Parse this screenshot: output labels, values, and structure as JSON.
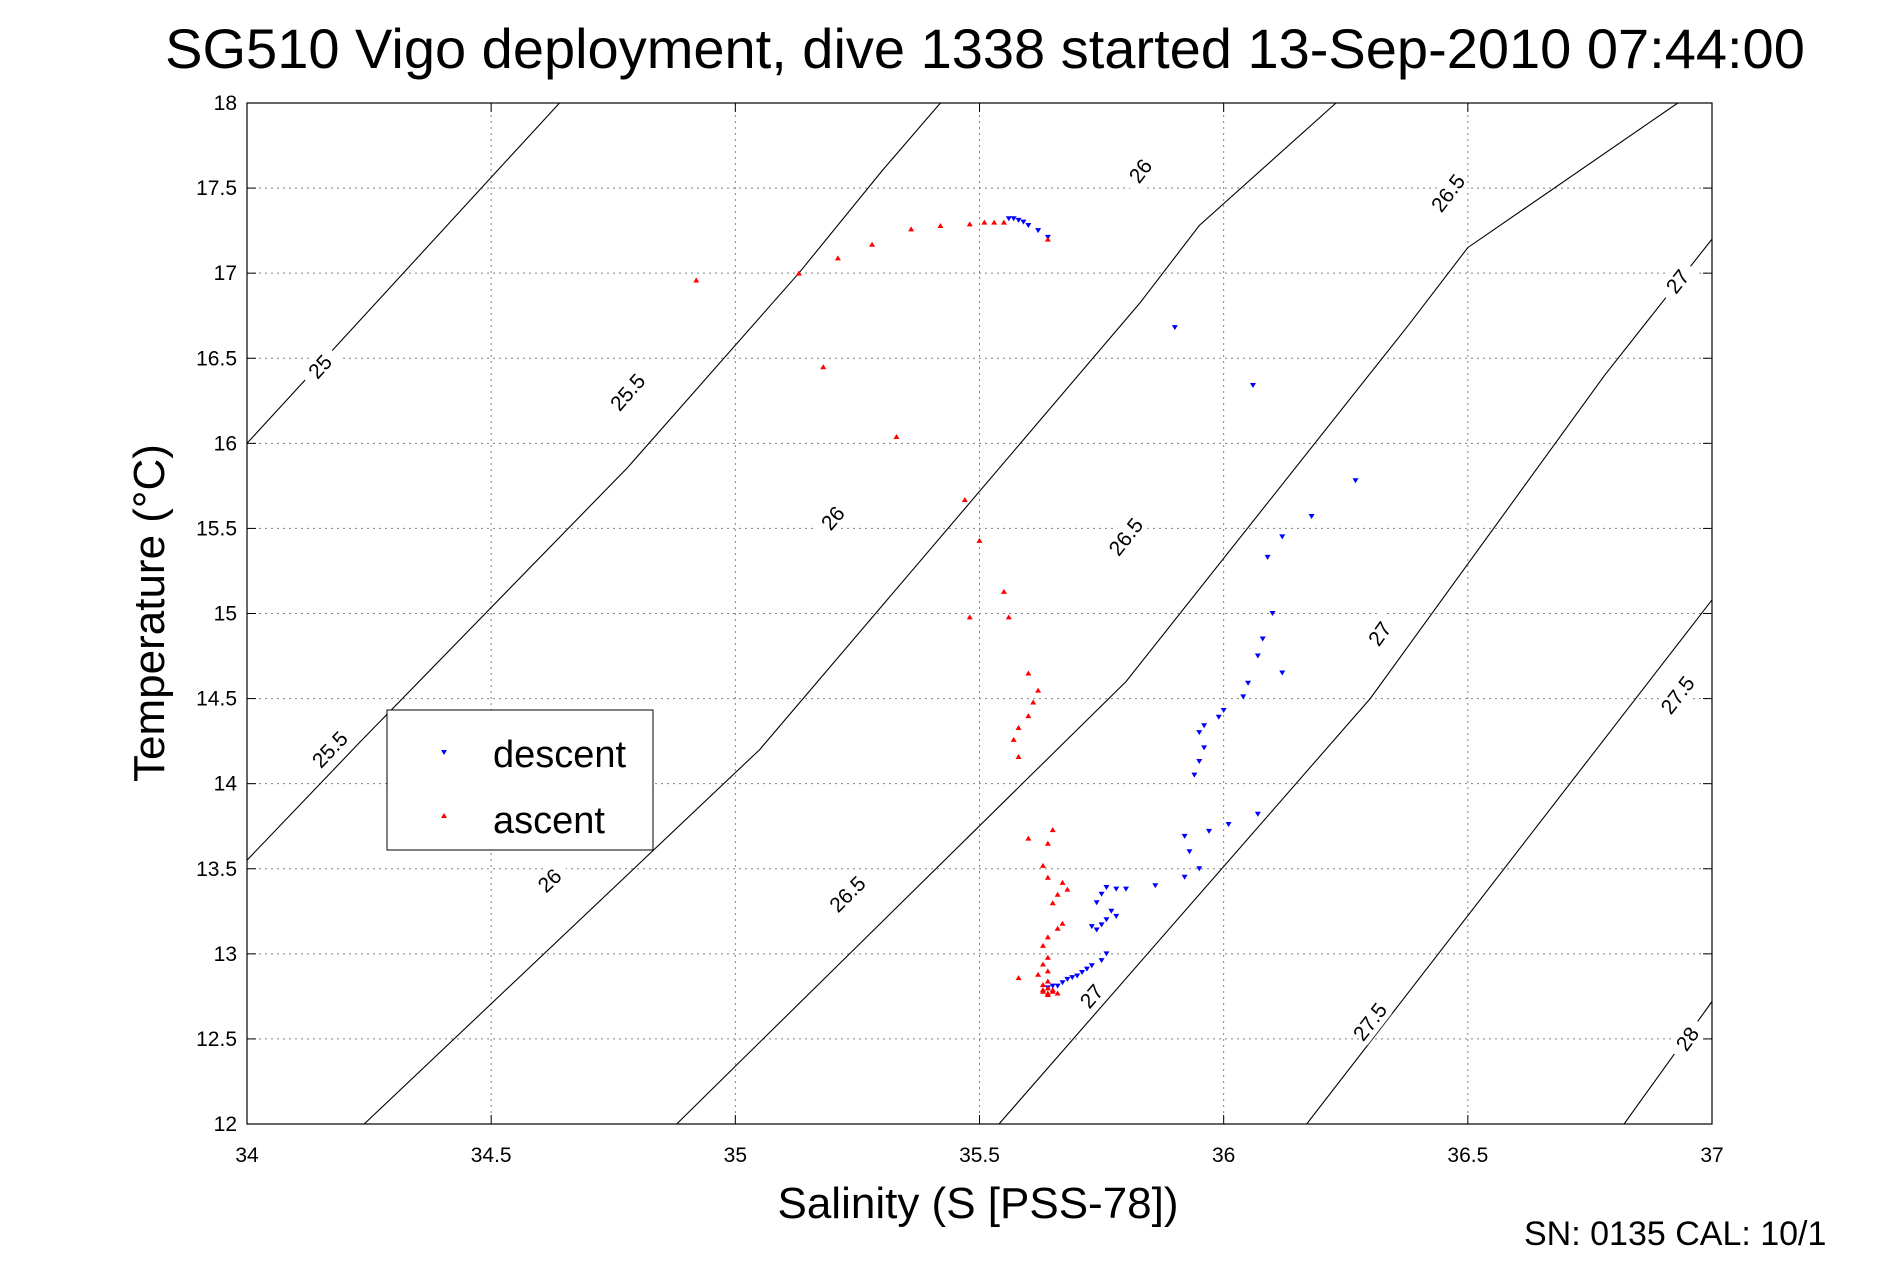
{
  "chart_data": {
    "type": "scatter",
    "title": "SG510 Vigo deployment, dive 1338 started 13-Sep-2010 07:44:00",
    "xlabel": "Salinity (S [PSS-78])",
    "ylabel": "Temperature (°C)",
    "xlim": [
      34,
      37
    ],
    "ylim": [
      12,
      18
    ],
    "xticks": [
      "34",
      "34.5",
      "35",
      "35.5",
      "36",
      "36.5",
      "37"
    ],
    "yticks": [
      "12",
      "12.5",
      "13",
      "13.5",
      "14",
      "14.5",
      "15",
      "15.5",
      "16",
      "16.5",
      "17",
      "17.5",
      "18"
    ],
    "grid": true,
    "legend_position": "middle-left",
    "footer": "SN: 0135  CAL: 10/1",
    "density_contours": [
      {
        "level": "25",
        "points": [
          [
            34.0,
            16.0
          ],
          [
            34.64,
            18.0
          ]
        ],
        "labels": [
          [
            34.15,
            16.45
          ]
        ]
      },
      {
        "level": "25.5",
        "points": [
          [
            34.0,
            13.55
          ],
          [
            34.23,
            14.24
          ],
          [
            34.78,
            15.86
          ],
          [
            35.13,
            17.0
          ],
          [
            35.3,
            17.6
          ],
          [
            35.42,
            18.0
          ]
        ],
        "labels": [
          [
            34.17,
            14.2
          ],
          [
            34.78,
            16.3
          ]
        ]
      },
      {
        "level": "26",
        "points": [
          [
            34.24,
            12.0
          ],
          [
            35.05,
            14.2
          ],
          [
            35.83,
            16.83
          ],
          [
            35.95,
            17.28
          ],
          [
            36.23,
            18.0
          ]
        ],
        "labels": [
          [
            34.62,
            13.43
          ],
          [
            35.2,
            15.56
          ],
          [
            35.83,
            17.6
          ]
        ]
      },
      {
        "level": "26.5",
        "points": [
          [
            34.88,
            12.0
          ],
          [
            35.8,
            14.6
          ],
          [
            36.38,
            16.7
          ],
          [
            36.5,
            17.15
          ],
          [
            36.93,
            18.0
          ]
        ],
        "labels": [
          [
            35.23,
            13.35
          ],
          [
            35.8,
            15.45
          ],
          [
            36.46,
            17.47
          ]
        ]
      },
      {
        "level": "27",
        "points": [
          [
            35.54,
            12.0
          ],
          [
            36.3,
            14.5
          ],
          [
            36.78,
            16.4
          ],
          [
            37.0,
            17.2
          ]
        ],
        "labels": [
          [
            35.73,
            12.75
          ],
          [
            36.32,
            14.88
          ],
          [
            36.93,
            16.95
          ]
        ]
      },
      {
        "level": "27.5",
        "points": [
          [
            36.17,
            12.0
          ],
          [
            37.0,
            15.08
          ]
        ],
        "labels": [
          [
            36.3,
            12.6
          ],
          [
            36.93,
            14.52
          ]
        ]
      },
      {
        "level": "28",
        "points": [
          [
            36.82,
            12.0
          ],
          [
            37.0,
            12.72
          ]
        ],
        "labels": [
          [
            36.95,
            12.5
          ]
        ]
      }
    ],
    "series": [
      {
        "name": "descent",
        "color": "#0000ff",
        "marker": "triangle-down",
        "points": [
          [
            35.56,
            17.32
          ],
          [
            35.57,
            17.32
          ],
          [
            35.58,
            17.31
          ],
          [
            35.59,
            17.3
          ],
          [
            35.6,
            17.28
          ],
          [
            35.62,
            17.25
          ],
          [
            35.64,
            17.21
          ],
          [
            35.9,
            16.68
          ],
          [
            36.06,
            16.34
          ],
          [
            36.27,
            15.78
          ],
          [
            36.18,
            15.57
          ],
          [
            36.12,
            15.45
          ],
          [
            36.09,
            15.33
          ],
          [
            36.1,
            15.0
          ],
          [
            36.08,
            14.85
          ],
          [
            36.07,
            14.75
          ],
          [
            36.12,
            14.65
          ],
          [
            36.05,
            14.59
          ],
          [
            36.04,
            14.51
          ],
          [
            36.0,
            14.43
          ],
          [
            35.99,
            14.39
          ],
          [
            35.96,
            14.34
          ],
          [
            35.95,
            14.3
          ],
          [
            35.96,
            14.21
          ],
          [
            35.95,
            14.13
          ],
          [
            35.94,
            14.05
          ],
          [
            36.07,
            13.82
          ],
          [
            36.01,
            13.76
          ],
          [
            35.97,
            13.72
          ],
          [
            35.92,
            13.69
          ],
          [
            35.93,
            13.6
          ],
          [
            35.95,
            13.5
          ],
          [
            35.92,
            13.45
          ],
          [
            35.86,
            13.4
          ],
          [
            35.8,
            13.38
          ],
          [
            35.78,
            13.38
          ],
          [
            35.76,
            13.39
          ],
          [
            35.75,
            13.35
          ],
          [
            35.74,
            13.3
          ],
          [
            35.77,
            13.25
          ],
          [
            35.78,
            13.22
          ],
          [
            35.76,
            13.2
          ],
          [
            35.75,
            13.17
          ],
          [
            35.74,
            13.14
          ],
          [
            35.73,
            13.16
          ],
          [
            35.76,
            13.0
          ],
          [
            35.75,
            12.96
          ],
          [
            35.73,
            12.93
          ],
          [
            35.72,
            12.91
          ],
          [
            35.71,
            12.89
          ],
          [
            35.7,
            12.87
          ],
          [
            35.69,
            12.86
          ],
          [
            35.68,
            12.85
          ],
          [
            35.67,
            12.83
          ],
          [
            35.66,
            12.81
          ],
          [
            35.65,
            12.81
          ],
          [
            35.64,
            12.8
          ]
        ]
      },
      {
        "name": "ascent",
        "color": "#ff0000",
        "marker": "triangle-up",
        "points": [
          [
            34.92,
            16.96
          ],
          [
            35.13,
            17.0
          ],
          [
            35.21,
            17.09
          ],
          [
            35.28,
            17.17
          ],
          [
            35.36,
            17.26
          ],
          [
            35.42,
            17.28
          ],
          [
            35.48,
            17.29
          ],
          [
            35.51,
            17.3
          ],
          [
            35.53,
            17.3
          ],
          [
            35.55,
            17.3
          ],
          [
            35.64,
            17.2
          ],
          [
            35.18,
            16.45
          ],
          [
            35.33,
            16.04
          ],
          [
            35.47,
            15.67
          ],
          [
            35.5,
            15.43
          ],
          [
            35.55,
            15.13
          ],
          [
            35.48,
            14.98
          ],
          [
            35.56,
            14.98
          ],
          [
            35.6,
            14.65
          ],
          [
            35.62,
            14.55
          ],
          [
            35.61,
            14.48
          ],
          [
            35.6,
            14.4
          ],
          [
            35.58,
            14.33
          ],
          [
            35.57,
            14.26
          ],
          [
            35.58,
            14.16
          ],
          [
            35.6,
            13.68
          ],
          [
            35.65,
            13.73
          ],
          [
            35.64,
            13.65
          ],
          [
            35.63,
            13.52
          ],
          [
            35.64,
            13.45
          ],
          [
            35.67,
            13.42
          ],
          [
            35.68,
            13.38
          ],
          [
            35.66,
            13.35
          ],
          [
            35.65,
            13.3
          ],
          [
            35.67,
            13.18
          ],
          [
            35.66,
            13.15
          ],
          [
            35.64,
            13.1
          ],
          [
            35.63,
            13.05
          ],
          [
            35.64,
            12.98
          ],
          [
            35.63,
            12.94
          ],
          [
            35.64,
            12.9
          ],
          [
            35.62,
            12.88
          ],
          [
            35.58,
            12.86
          ],
          [
            35.64,
            12.84
          ],
          [
            35.63,
            12.82
          ],
          [
            35.64,
            12.8
          ],
          [
            35.65,
            12.79
          ],
          [
            35.63,
            12.78
          ],
          [
            35.64,
            12.77
          ],
          [
            35.65,
            12.78
          ],
          [
            35.66,
            12.77
          ],
          [
            35.63,
            12.79
          ],
          [
            35.64,
            12.76
          ]
        ]
      }
    ]
  }
}
